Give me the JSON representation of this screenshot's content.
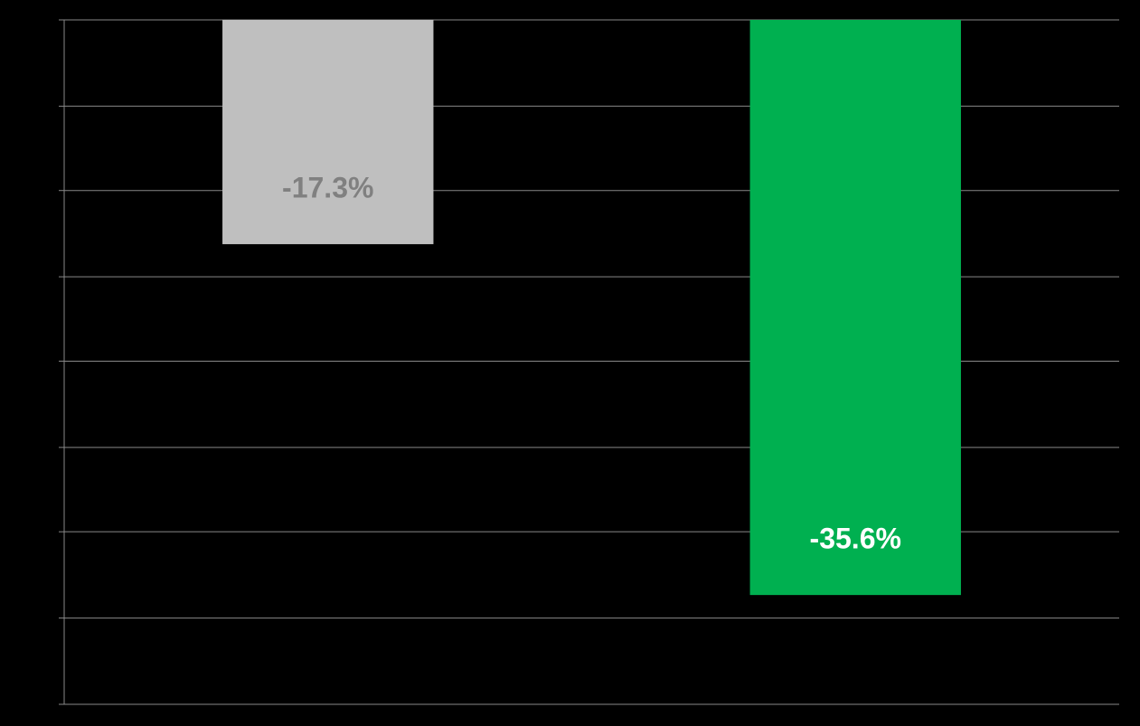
{
  "chart_data": {
    "type": "bar",
    "categories": [
      null,
      null
    ],
    "values": [
      -17.3,
      -35.6
    ],
    "value_labels": [
      "-17.3%",
      "-35.6%"
    ],
    "colors": [
      "#bfbfbf",
      "#00b050"
    ],
    "label_colors": [
      "#808080",
      "#ffffff"
    ],
    "ylim": [
      -41.3,
      -5.6
    ],
    "yticks": [
      -5.6,
      -10.1,
      -14.5,
      -19.0,
      -23.4,
      -27.9,
      -32.3,
      -36.8,
      -41.3
    ],
    "grid": true
  }
}
